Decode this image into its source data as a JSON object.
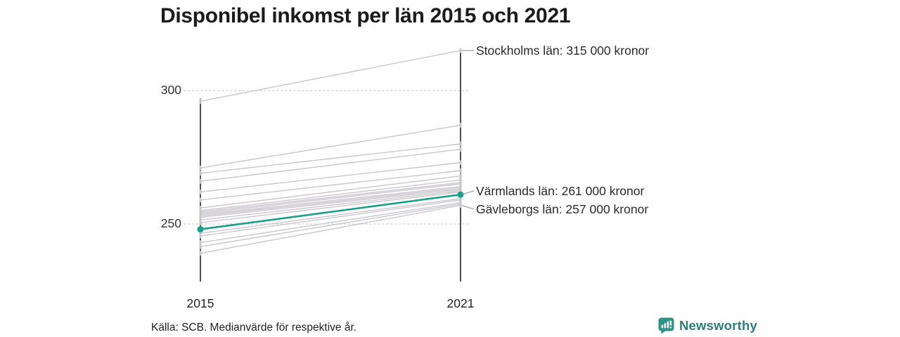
{
  "title": "Disponibel inkomst per län 2015 och 2021",
  "source_note": "Källa: SCB. Medianvärde för respektive år.",
  "brand": {
    "name": "Newsworthy",
    "icon": "speech-bubble-bar-chart",
    "text_color": "#2d7d78",
    "icon_color": "#2f9486"
  },
  "chart_data": {
    "type": "line",
    "subtype": "slopegraph",
    "title": "Disponibel inkomst per län 2015 och 2021",
    "x": [
      2015,
      2021
    ],
    "x_tick_labels": [
      "2015",
      "2021"
    ],
    "y_ticks": [
      250,
      300
    ],
    "y_tick_labels": [
      "250",
      "300"
    ],
    "ylim": [
      232,
      322
    ],
    "y_unit": "tusen kronor",
    "grid": "dotted-horizontal",
    "legend": "none",
    "line_color": "#c9c6cd",
    "highlight_color": "#1b9e8a",
    "axis_color": "#2e2e2e",
    "series": [
      {
        "label": "Stockholms län",
        "annotation": "Stockholms län: 315 000 kronor",
        "values": [
          296,
          315
        ],
        "highlight": false
      },
      {
        "values": [
          271,
          287
        ]
      },
      {
        "values": [
          269,
          280
        ]
      },
      {
        "values": [
          266,
          278
        ]
      },
      {
        "values": [
          262,
          273
        ]
      },
      {
        "values": [
          259,
          270
        ]
      },
      {
        "values": [
          256,
          268
        ]
      },
      {
        "values": [
          255,
          266.5
        ]
      },
      {
        "values": [
          254.5,
          265.5
        ]
      },
      {
        "values": [
          254,
          265
        ]
      },
      {
        "values": [
          253.5,
          264
        ]
      },
      {
        "values": [
          253,
          263.5
        ]
      },
      {
        "values": [
          252.5,
          263
        ]
      },
      {
        "values": [
          251.5,
          262.5
        ]
      },
      {
        "values": [
          250.5,
          262
        ]
      },
      {
        "label": "Värmlands län",
        "annotation": "Värmlands län: 261 000 kronor",
        "values": [
          248,
          261
        ],
        "highlight": true
      },
      {
        "values": [
          246.5,
          259.5
        ]
      },
      {
        "values": [
          245.5,
          259
        ]
      },
      {
        "values": [
          243,
          258
        ]
      },
      {
        "values": [
          241.5,
          257.5
        ]
      },
      {
        "label": "Gävleborgs län",
        "annotation": "Gävleborgs län: 257 000 kronor",
        "values": [
          239,
          257
        ],
        "highlight": false
      }
    ]
  }
}
